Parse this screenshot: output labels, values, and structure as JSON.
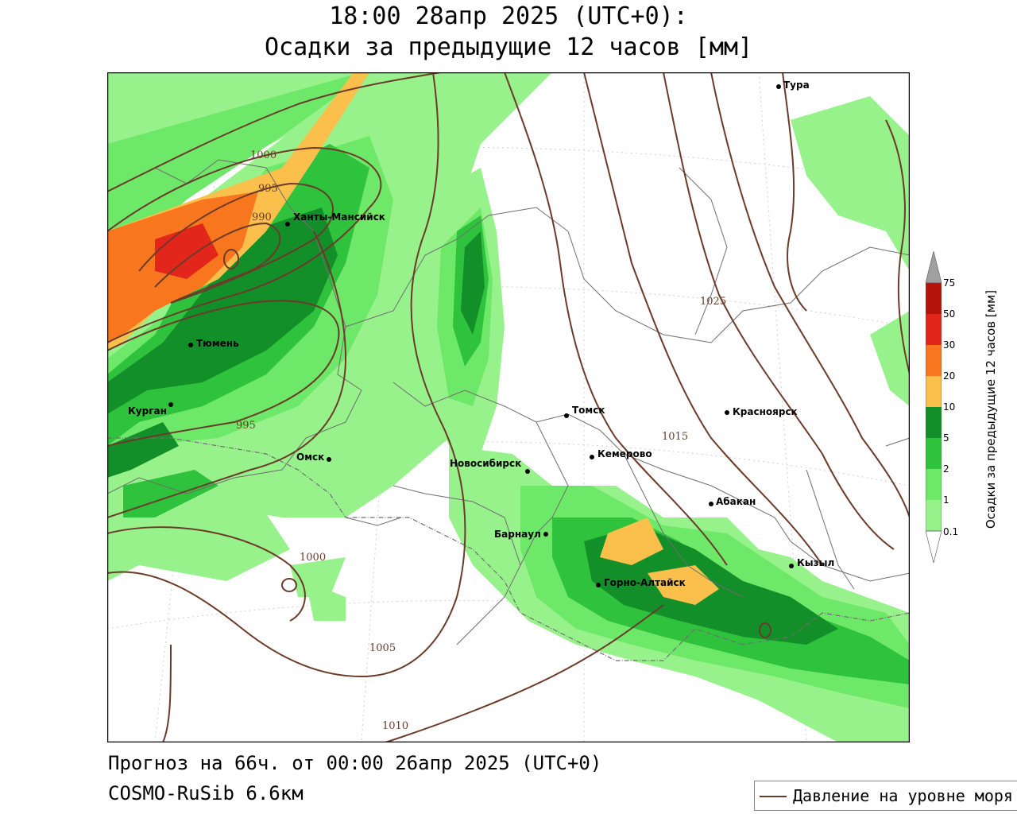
{
  "header": {
    "line1": "18:00 28апр 2025 (UTC+0):",
    "line2": "Осадки за предыдущие 12 часов [мм]"
  },
  "footer": {
    "forecast": "Прогноз на 66ч. от 00:00 26апр 2025 (UTC+0)",
    "model": "COSMO-RuSib 6.6км"
  },
  "legend": {
    "pressure_label": "Давление на уровне моря"
  },
  "colorbar": {
    "title": "Осадки за предыдущие 12 часов [мм]",
    "levels": [
      "0.1",
      "1",
      "2",
      "5",
      "10",
      "20",
      "30",
      "50",
      "75"
    ],
    "colors": [
      "#98f28c",
      "#6ee868",
      "#2fc23c",
      "#138f2a",
      "#fbbf4c",
      "#f8771e",
      "#e3261b",
      "#b5140d",
      "#a0a0a0"
    ]
  },
  "colors": {
    "isobar": "#6b3b2a",
    "border": "#6e6e6e"
  },
  "cities": [
    {
      "name": "Тура"
    },
    {
      "name": "Ханты-Мансийск"
    },
    {
      "name": "Тюмень"
    },
    {
      "name": "Курган"
    },
    {
      "name": "Омск"
    },
    {
      "name": "Томск"
    },
    {
      "name": "Новосибирск"
    },
    {
      "name": "Кемерово"
    },
    {
      "name": "Красноярск"
    },
    {
      "name": "Абакан"
    },
    {
      "name": "Барнаул"
    },
    {
      "name": "Горно-Алтайск"
    },
    {
      "name": "Кызыл"
    }
  ],
  "isobar_labels": [
    "1000",
    "995",
    "990",
    "995",
    "1000",
    "1005",
    "1010",
    "1015",
    "1025"
  ]
}
